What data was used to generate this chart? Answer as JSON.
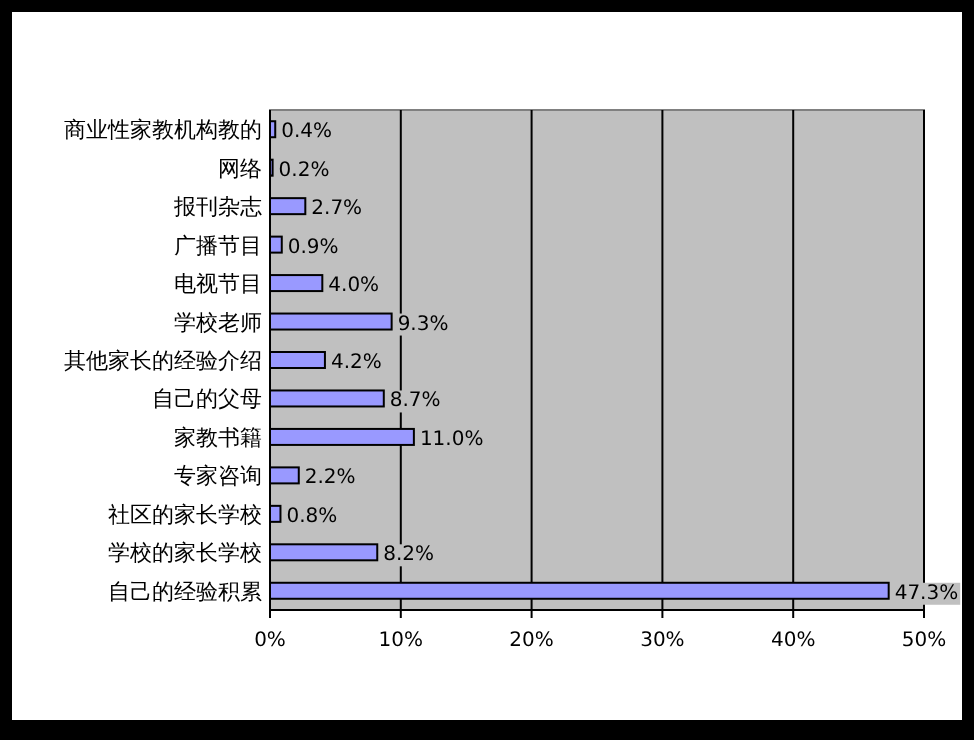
{
  "chart_data": {
    "type": "bar",
    "orientation": "horizontal",
    "categories": [
      "商业性家教机构教的",
      "网络",
      "报刊杂志",
      "广播节目",
      "电视节目",
      "学校老师",
      "其他家长的经验介绍",
      "自己的父母",
      "家教书籍",
      "专家咨询",
      "社区的家长学校",
      "学校的家长学校",
      "自己的经验积累"
    ],
    "values": [
      0.4,
      0.2,
      2.7,
      0.9,
      4.0,
      9.3,
      4.2,
      8.7,
      11.0,
      2.2,
      0.8,
      8.2,
      47.3
    ],
    "value_labels": [
      "0.4%",
      "0.2%",
      "2.7%",
      "0.9%",
      "4.0%",
      "9.3%",
      "4.2%",
      "8.7%",
      "11.0%",
      "2.2%",
      "0.8%",
      "8.2%",
      "47.3%"
    ],
    "color": "#9999ff",
    "xlim": [
      0,
      50
    ],
    "xticks": [
      {
        "value": 0,
        "label": "0%"
      },
      {
        "value": 10,
        "label": "10%"
      },
      {
        "value": 20,
        "label": "20%"
      },
      {
        "value": 30,
        "label": "30%"
      },
      {
        "value": 40,
        "label": "40%"
      },
      {
        "value": 50,
        "label": "50%"
      }
    ],
    "grid": "x"
  }
}
